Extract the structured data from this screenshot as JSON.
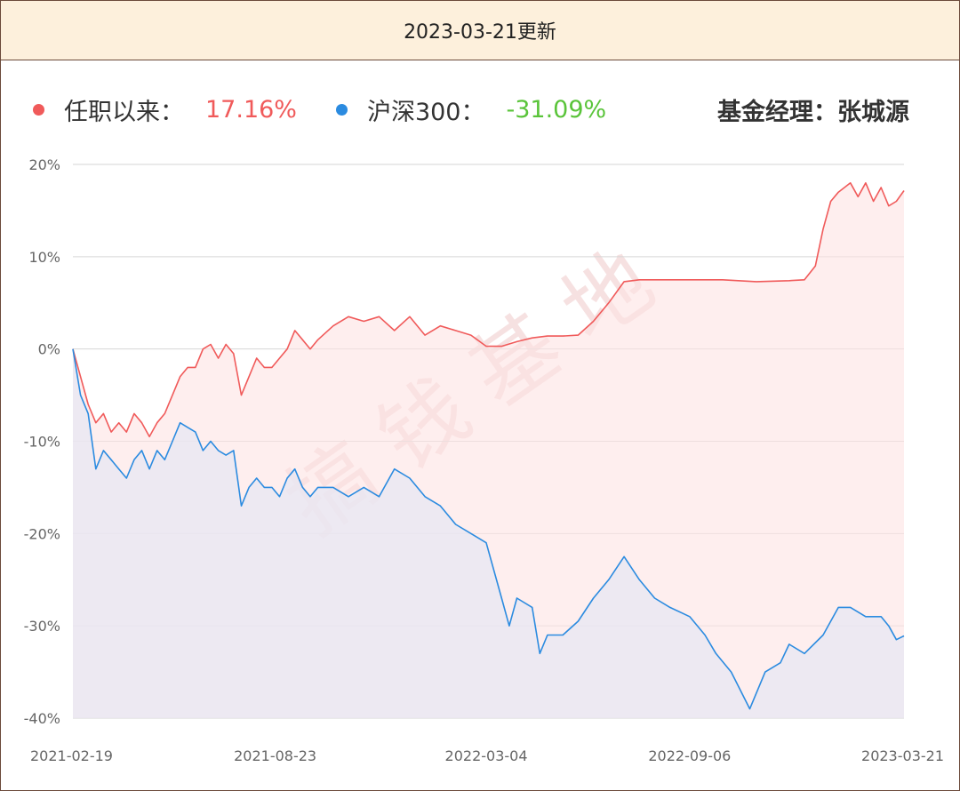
{
  "header": {
    "title": "2023-03-21更新"
  },
  "legend": {
    "fund_label": "任职以来：",
    "fund_value": "17.16%",
    "index_label": "沪深300：",
    "index_value": "-31.09%",
    "manager_text": "基金经理：张城源"
  },
  "watermark": "搞钱基地",
  "colors": {
    "fund": "#f05a5a",
    "index": "#2b8be0",
    "positive_value": "#f05a5a",
    "negative_value": "#5ac43a"
  },
  "chart_data": {
    "type": "area",
    "title": "",
    "xlabel": "",
    "ylabel": "",
    "ylim": [
      -40,
      20
    ],
    "y_ticks": [
      "20%",
      "10%",
      "0%",
      "-10%",
      "-20%",
      "-30%",
      "-40%"
    ],
    "x_ticks": [
      "2021-02-19",
      "2021-08-23",
      "2022-03-04",
      "2022-09-06",
      "2023-03-21"
    ],
    "grid": true,
    "series": [
      {
        "name": "任职以来",
        "color": "#f05a5a",
        "points": [
          [
            "2021-02-19",
            0
          ],
          [
            "2021-02-26",
            -3
          ],
          [
            "2021-03-05",
            -6
          ],
          [
            "2021-03-12",
            -8
          ],
          [
            "2021-03-19",
            -7
          ],
          [
            "2021-03-26",
            -9
          ],
          [
            "2021-04-02",
            -8
          ],
          [
            "2021-04-09",
            -9
          ],
          [
            "2021-04-16",
            -7
          ],
          [
            "2021-04-23",
            -8
          ],
          [
            "2021-04-30",
            -9.5
          ],
          [
            "2021-05-07",
            -8
          ],
          [
            "2021-05-14",
            -7
          ],
          [
            "2021-05-21",
            -5
          ],
          [
            "2021-05-28",
            -3
          ],
          [
            "2021-06-04",
            -2
          ],
          [
            "2021-06-11",
            -2
          ],
          [
            "2021-06-18",
            0
          ],
          [
            "2021-06-25",
            0.5
          ],
          [
            "2021-07-02",
            -1
          ],
          [
            "2021-07-09",
            0.5
          ],
          [
            "2021-07-16",
            -0.5
          ],
          [
            "2021-07-23",
            -5
          ],
          [
            "2021-07-30",
            -3
          ],
          [
            "2021-08-06",
            -1
          ],
          [
            "2021-08-13",
            -2
          ],
          [
            "2021-08-20",
            -2
          ],
          [
            "2021-08-27",
            -1
          ],
          [
            "2021-09-03",
            0
          ],
          [
            "2021-09-10",
            2
          ],
          [
            "2021-09-17",
            1
          ],
          [
            "2021-09-24",
            0
          ],
          [
            "2021-10-01",
            1
          ],
          [
            "2021-10-15",
            2.5
          ],
          [
            "2021-10-29",
            3.5
          ],
          [
            "2021-11-12",
            3
          ],
          [
            "2021-11-26",
            3.5
          ],
          [
            "2021-12-10",
            2
          ],
          [
            "2021-12-24",
            3.5
          ],
          [
            "2022-01-07",
            1.5
          ],
          [
            "2022-01-21",
            2.5
          ],
          [
            "2022-02-04",
            2
          ],
          [
            "2022-02-18",
            1.5
          ],
          [
            "2022-03-04",
            0.3
          ],
          [
            "2022-03-18",
            0.3
          ],
          [
            "2022-04-01",
            0.8
          ],
          [
            "2022-04-15",
            1.2
          ],
          [
            "2022-04-29",
            1.4
          ],
          [
            "2022-05-13",
            1.4
          ],
          [
            "2022-05-27",
            1.5
          ],
          [
            "2022-06-10",
            3
          ],
          [
            "2022-06-24",
            5
          ],
          [
            "2022-07-08",
            7.3
          ],
          [
            "2022-07-22",
            7.5
          ],
          [
            "2022-08-05",
            7.5
          ],
          [
            "2022-09-06",
            7.5
          ],
          [
            "2022-10-06",
            7.5
          ],
          [
            "2022-11-06",
            7.3
          ],
          [
            "2022-12-06",
            7.4
          ],
          [
            "2022-12-20",
            7.5
          ],
          [
            "2022-12-30",
            9
          ],
          [
            "2023-01-06",
            13
          ],
          [
            "2023-01-13",
            16
          ],
          [
            "2023-01-20",
            17
          ],
          [
            "2023-01-31",
            18
          ],
          [
            "2023-02-07",
            16.5
          ],
          [
            "2023-02-14",
            18
          ],
          [
            "2023-02-21",
            16
          ],
          [
            "2023-02-28",
            17.5
          ],
          [
            "2023-03-07",
            15.5
          ],
          [
            "2023-03-14",
            16
          ],
          [
            "2023-03-21",
            17.16
          ]
        ]
      },
      {
        "name": "沪深300",
        "color": "#2b8be0",
        "points": [
          [
            "2021-02-19",
            0
          ],
          [
            "2021-02-26",
            -5
          ],
          [
            "2021-03-05",
            -7
          ],
          [
            "2021-03-12",
            -13
          ],
          [
            "2021-03-19",
            -11
          ],
          [
            "2021-03-26",
            -12
          ],
          [
            "2021-04-02",
            -13
          ],
          [
            "2021-04-09",
            -14
          ],
          [
            "2021-04-16",
            -12
          ],
          [
            "2021-04-23",
            -11
          ],
          [
            "2021-04-30",
            -13
          ],
          [
            "2021-05-07",
            -11
          ],
          [
            "2021-05-14",
            -12
          ],
          [
            "2021-05-21",
            -10
          ],
          [
            "2021-05-28",
            -8
          ],
          [
            "2021-06-04",
            -8.5
          ],
          [
            "2021-06-11",
            -9
          ],
          [
            "2021-06-18",
            -11
          ],
          [
            "2021-06-25",
            -10
          ],
          [
            "2021-07-02",
            -11
          ],
          [
            "2021-07-09",
            -11.5
          ],
          [
            "2021-07-16",
            -11
          ],
          [
            "2021-07-23",
            -17
          ],
          [
            "2021-07-30",
            -15
          ],
          [
            "2021-08-06",
            -14
          ],
          [
            "2021-08-13",
            -15
          ],
          [
            "2021-08-20",
            -15
          ],
          [
            "2021-08-27",
            -16
          ],
          [
            "2021-09-03",
            -14
          ],
          [
            "2021-09-10",
            -13
          ],
          [
            "2021-09-17",
            -15
          ],
          [
            "2021-09-24",
            -16
          ],
          [
            "2021-10-01",
            -15
          ],
          [
            "2021-10-15",
            -15
          ],
          [
            "2021-10-29",
            -16
          ],
          [
            "2021-11-12",
            -15
          ],
          [
            "2021-11-26",
            -16
          ],
          [
            "2021-12-10",
            -13
          ],
          [
            "2021-12-24",
            -14
          ],
          [
            "2022-01-07",
            -16
          ],
          [
            "2022-01-21",
            -17
          ],
          [
            "2022-02-04",
            -19
          ],
          [
            "2022-02-18",
            -20
          ],
          [
            "2022-03-04",
            -21
          ],
          [
            "2022-03-18",
            -27
          ],
          [
            "2022-03-25",
            -30
          ],
          [
            "2022-04-01",
            -27
          ],
          [
            "2022-04-15",
            -28
          ],
          [
            "2022-04-22",
            -33
          ],
          [
            "2022-04-29",
            -31
          ],
          [
            "2022-05-13",
            -31
          ],
          [
            "2022-05-27",
            -29.5
          ],
          [
            "2022-06-10",
            -27
          ],
          [
            "2022-06-24",
            -25
          ],
          [
            "2022-07-08",
            -22.5
          ],
          [
            "2022-07-22",
            -25
          ],
          [
            "2022-08-05",
            -27
          ],
          [
            "2022-08-19",
            -28
          ],
          [
            "2022-09-06",
            -29
          ],
          [
            "2022-09-20",
            -31
          ],
          [
            "2022-09-30",
            -33
          ],
          [
            "2022-10-14",
            -35
          ],
          [
            "2022-10-31",
            -39
          ],
          [
            "2022-11-14",
            -35
          ],
          [
            "2022-11-28",
            -34
          ],
          [
            "2022-12-06",
            -32
          ],
          [
            "2022-12-20",
            -33
          ],
          [
            "2023-01-06",
            -31
          ],
          [
            "2023-01-20",
            -28
          ],
          [
            "2023-01-31",
            -28
          ],
          [
            "2023-02-14",
            -29
          ],
          [
            "2023-02-28",
            -29
          ],
          [
            "2023-03-07",
            -30
          ],
          [
            "2023-03-14",
            -31.5
          ],
          [
            "2023-03-21",
            -31.09
          ]
        ]
      }
    ]
  }
}
